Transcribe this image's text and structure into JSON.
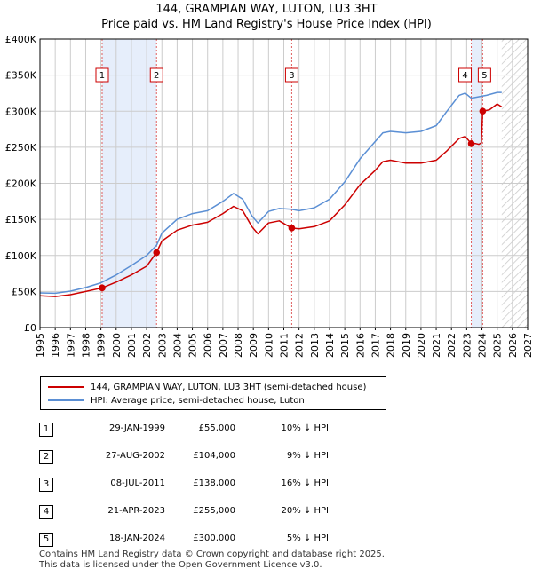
{
  "chart_data": {
    "type": "line",
    "title": "144, GRAMPIAN WAY, LUTON, LU3 3HT",
    "subtitle": "Price paid vs. HM Land Registry's House Price Index (HPI)",
    "xlabel": "",
    "ylabel": "",
    "xlim": [
      1995,
      2027
    ],
    "ylim": [
      0,
      400000
    ],
    "x_ticks": [
      "1995",
      "1996",
      "1997",
      "1998",
      "1999",
      "2000",
      "2001",
      "2002",
      "2003",
      "2004",
      "2005",
      "2006",
      "2007",
      "2008",
      "2009",
      "2010",
      "2011",
      "2012",
      "2013",
      "2014",
      "2015",
      "2016",
      "2017",
      "2018",
      "2019",
      "2020",
      "2021",
      "2022",
      "2023",
      "2024",
      "2025",
      "2026",
      "2027"
    ],
    "y_ticks": [
      {
        "value": 0,
        "label": "£0"
      },
      {
        "value": 50000,
        "label": "£50K"
      },
      {
        "value": 100000,
        "label": "£100K"
      },
      {
        "value": 150000,
        "label": "£150K"
      },
      {
        "value": 200000,
        "label": "£200K"
      },
      {
        "value": 250000,
        "label": "£250K"
      },
      {
        "value": 300000,
        "label": "£300K"
      },
      {
        "value": 350000,
        "label": "£350K"
      },
      {
        "value": 400000,
        "label": "£400K"
      }
    ],
    "grid": true,
    "data_end_year": 2025.3,
    "series": [
      {
        "name": "144, GRAMPIAN WAY, LUTON, LU3 3HT (semi-detached house)",
        "color": "#cc0000",
        "points": [
          [
            1995.0,
            44000
          ],
          [
            1996.0,
            43000
          ],
          [
            1997.0,
            45500
          ],
          [
            1998.0,
            50000
          ],
          [
            1999.08,
            55000
          ],
          [
            2000.0,
            63000
          ],
          [
            2001.0,
            73000
          ],
          [
            2002.0,
            85000
          ],
          [
            2002.65,
            104000
          ],
          [
            2003.0,
            120000
          ],
          [
            2004.0,
            135000
          ],
          [
            2005.0,
            142000
          ],
          [
            2006.0,
            146000
          ],
          [
            2007.0,
            158000
          ],
          [
            2007.7,
            168000
          ],
          [
            2008.3,
            162000
          ],
          [
            2008.9,
            140000
          ],
          [
            2009.3,
            130000
          ],
          [
            2010.0,
            145000
          ],
          [
            2010.7,
            148000
          ],
          [
            2011.1,
            143000
          ],
          [
            2011.52,
            138000
          ],
          [
            2012.0,
            137000
          ],
          [
            2013.0,
            140000
          ],
          [
            2014.0,
            148000
          ],
          [
            2015.0,
            170000
          ],
          [
            2016.0,
            198000
          ],
          [
            2017.0,
            218000
          ],
          [
            2017.5,
            230000
          ],
          [
            2018.0,
            232000
          ],
          [
            2019.0,
            228000
          ],
          [
            2020.0,
            228000
          ],
          [
            2021.0,
            232000
          ],
          [
            2021.7,
            245000
          ],
          [
            2022.5,
            262000
          ],
          [
            2022.9,
            265000
          ],
          [
            2023.3,
            255000
          ],
          [
            2023.6,
            255000
          ],
          [
            2023.8,
            254000
          ],
          [
            2023.95,
            256000
          ],
          [
            2024.05,
            300000
          ],
          [
            2024.5,
            302000
          ],
          [
            2025.0,
            310000
          ],
          [
            2025.3,
            306000
          ]
        ]
      },
      {
        "name": "HPI: Average price, semi-detached house, Luton",
        "color": "#5b8fd4",
        "points": [
          [
            1995.0,
            48000
          ],
          [
            1996.0,
            47500
          ],
          [
            1997.0,
            50500
          ],
          [
            1998.0,
            55500
          ],
          [
            1999.0,
            62000
          ],
          [
            2000.0,
            73000
          ],
          [
            2001.0,
            86000
          ],
          [
            2002.0,
            100000
          ],
          [
            2002.65,
            114000
          ],
          [
            2003.0,
            131000
          ],
          [
            2004.0,
            150000
          ],
          [
            2005.0,
            158000
          ],
          [
            2006.0,
            162000
          ],
          [
            2007.0,
            175000
          ],
          [
            2007.7,
            186000
          ],
          [
            2008.3,
            178000
          ],
          [
            2008.9,
            155000
          ],
          [
            2009.3,
            145000
          ],
          [
            2010.0,
            161000
          ],
          [
            2010.7,
            165000
          ],
          [
            2011.5,
            164000
          ],
          [
            2012.0,
            162000
          ],
          [
            2013.0,
            166000
          ],
          [
            2014.0,
            178000
          ],
          [
            2015.0,
            202000
          ],
          [
            2016.0,
            234000
          ],
          [
            2017.0,
            258000
          ],
          [
            2017.5,
            270000
          ],
          [
            2018.0,
            272000
          ],
          [
            2019.0,
            270000
          ],
          [
            2020.0,
            272000
          ],
          [
            2021.0,
            280000
          ],
          [
            2021.7,
            300000
          ],
          [
            2022.5,
            322000
          ],
          [
            2022.9,
            325000
          ],
          [
            2023.3,
            318000
          ],
          [
            2023.8,
            320000
          ],
          [
            2024.3,
            322000
          ],
          [
            2025.0,
            326000
          ],
          [
            2025.3,
            326000
          ]
        ]
      }
    ],
    "sales": [
      {
        "id": "1",
        "year": 1999.08,
        "price": 55000,
        "date": "29-JAN-1999",
        "price_label": "£55,000",
        "hpi": "10% ↓ HPI"
      },
      {
        "id": "2",
        "year": 2002.65,
        "price": 104000,
        "date": "27-AUG-2002",
        "price_label": "£104,000",
        "hpi": "9% ↓ HPI"
      },
      {
        "id": "3",
        "year": 2011.52,
        "price": 138000,
        "date": "08-JUL-2011",
        "price_label": "£138,000",
        "hpi": "16% ↓ HPI"
      },
      {
        "id": "4",
        "year": 2023.3,
        "price": 255000,
        "date": "21-APR-2023",
        "price_label": "£255,000",
        "hpi": "20% ↓ HPI"
      },
      {
        "id": "5",
        "year": 2024.05,
        "price": 300000,
        "date": "18-JAN-2024",
        "price_label": "£300,000",
        "hpi": "5% ↓ HPI"
      }
    ],
    "shaded_ranges": [
      [
        1999.08,
        2002.65
      ],
      [
        2023.3,
        2024.05
      ]
    ],
    "colors": {
      "shade": "#e6eefb",
      "grid": "#cccccc",
      "sale_line": "#e06060"
    }
  },
  "legend": {
    "property_label": "144, GRAMPIAN WAY, LUTON, LU3 3HT (semi-detached house)",
    "hpi_label": "HPI: Average price, semi-detached house, Luton"
  },
  "footer": {
    "line1": "Contains HM Land Registry data © Crown copyright and database right 2025.",
    "line2": "This data is licensed under the Open Government Licence v3.0."
  }
}
